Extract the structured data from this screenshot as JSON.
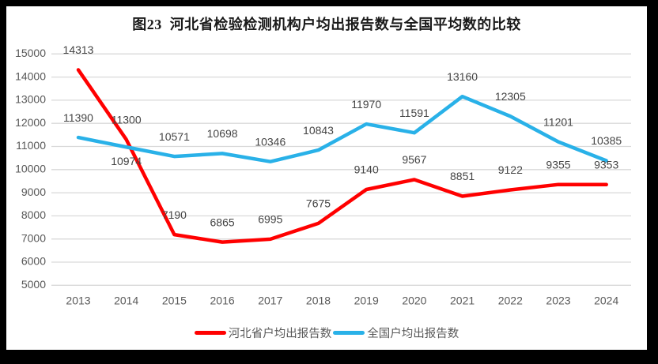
{
  "window": {
    "frame_color": "#000000",
    "panel_color": "#ffffff"
  },
  "chart_data": {
    "type": "line",
    "title": "图23  河北省检验检测机构户均出报告数与全国平均数的比较",
    "xlabel": "",
    "ylabel": "",
    "categories": [
      "2013",
      "2014",
      "2015",
      "2016",
      "2017",
      "2018",
      "2019",
      "2020",
      "2021",
      "2022",
      "2023",
      "2024"
    ],
    "series": [
      {
        "id": "hebei-series",
        "name": "河北省户均出报告数",
        "color": "#FF0000",
        "values": [
          14313,
          11300,
          7190,
          6865,
          6995,
          7675,
          9140,
          9567,
          8851,
          9122,
          9355,
          9353
        ],
        "labels_below": []
      },
      {
        "id": "national-series",
        "name": "全国户均出报告数",
        "color": "#29B1E8",
        "values": [
          11390,
          10974,
          10571,
          10698,
          10346,
          10843,
          11970,
          11591,
          13160,
          12305,
          11201,
          10385
        ],
        "labels_below": [
          1
        ]
      }
    ],
    "ylim": [
      5000,
      15000
    ],
    "ytick_step": 1000,
    "yticks": [
      "15000",
      "14000",
      "13000",
      "12000",
      "11000",
      "10000",
      "9000",
      "8000",
      "7000",
      "6000",
      "5000"
    ],
    "grid": true,
    "legend_position": "bottom",
    "styles": {
      "gridline_color": "#D9D9D9",
      "axis_label_color": "#595959",
      "data_label_color": "#444444",
      "title_color": "#1A1A1A",
      "legend_text_color": "#595959"
    }
  }
}
